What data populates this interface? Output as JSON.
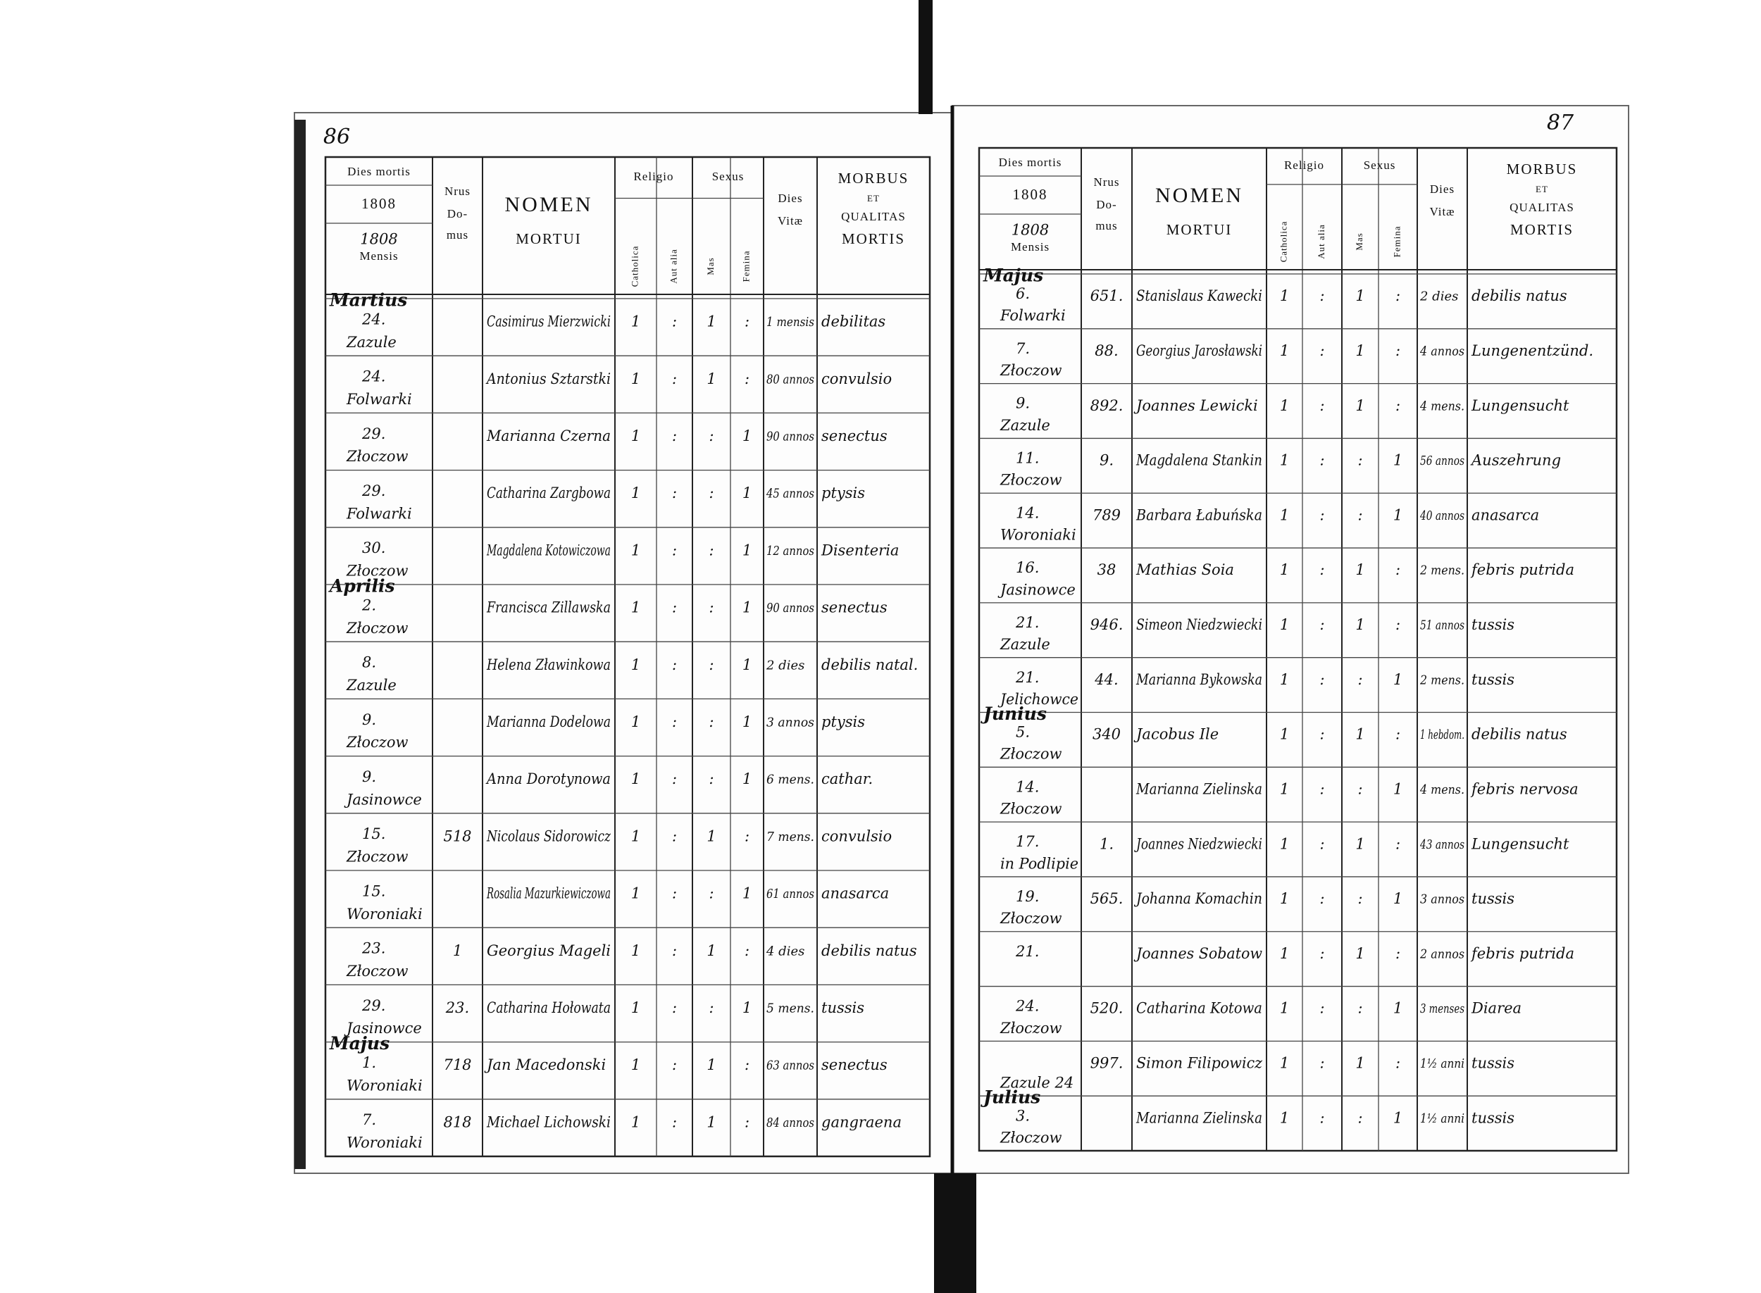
{
  "header": {
    "dies_mortis": "Dies mortis",
    "year": "1808",
    "mensis": "Mensis",
    "nrus": "Nrus",
    "domus": [
      "Do-",
      "mus"
    ],
    "nomen": "NOMEN",
    "mortui": "MORTUI",
    "religio": "Religio",
    "catholica": "Catholica",
    "aut_alia": "Aut alia",
    "sexus": "Sexus",
    "mas": "Mas",
    "femina": "Femina",
    "dies": "Dies",
    "vitae": "Vitæ",
    "morbus": "MORBUS",
    "et": "ET",
    "qualitas": "QUALITAS",
    "mortis": "MORTIS"
  },
  "pages": [
    {
      "page_number": "86",
      "rows": [
        {
          "month": "Martius",
          "day": "24.",
          "place": "Zazule",
          "name": "Casimirus Mierzwicki",
          "catholica": "1",
          "aut_alia": ":",
          "mas": "1",
          "femina": ":",
          "vitae": "1 mensis",
          "morbus": "debilitas"
        },
        {
          "day": "24.",
          "place": "Folwarki",
          "name": "Antonius Sztarstki",
          "catholica": "1",
          "aut_alia": ":",
          "mas": "1",
          "femina": ":",
          "vitae": "80 annos",
          "morbus": "convulsio"
        },
        {
          "day": "29.",
          "place": "Złoczow",
          "name": "Marianna Czerna",
          "catholica": "1",
          "aut_alia": ":",
          "mas": ":",
          "femina": "1",
          "vitae": "90 annos",
          "morbus": "senectus"
        },
        {
          "day": "29.",
          "place": "Folwarki",
          "name": "Catharina Zargbowa",
          "catholica": "1",
          "aut_alia": ":",
          "mas": ":",
          "femina": "1",
          "vitae": "45 annos",
          "morbus": "ptysis"
        },
        {
          "day": "30.",
          "place": "Złoczow",
          "name": "Magdalena Kotowiczowa",
          "catholica": "1",
          "aut_alia": ":",
          "mas": ":",
          "femina": "1",
          "vitae": "12 annos",
          "morbus": "Disenteria"
        },
        {
          "month": "Aprilis",
          "day": "2.",
          "place": "Złoczow",
          "name": "Francisca Zillawska",
          "catholica": "1",
          "aut_alia": ":",
          "mas": ":",
          "femina": "1",
          "vitae": "90 annos",
          "morbus": "senectus"
        },
        {
          "day": "8.",
          "place": "Zazule",
          "name": "Helena Zławinkowa",
          "catholica": "1",
          "aut_alia": ":",
          "mas": ":",
          "femina": "1",
          "vitae": "2 dies",
          "morbus": "debilis natal."
        },
        {
          "day": "9.",
          "place": "Złoczow",
          "name": "Marianna Dodelowa",
          "catholica": "1",
          "aut_alia": ":",
          "mas": ":",
          "femina": "1",
          "vitae": "3 annos",
          "morbus": "ptysis"
        },
        {
          "day": "9.",
          "place": "Jasinowce",
          "name": "Anna Dorotynowa",
          "catholica": "1",
          "aut_alia": ":",
          "mas": ":",
          "femina": "1",
          "vitae": "6 mens.",
          "morbus": "cathar."
        },
        {
          "day": "15.",
          "place": "Złoczow",
          "nr": "518",
          "name": "Nicolaus Sidorowicz",
          "catholica": "1",
          "aut_alia": ":",
          "mas": "1",
          "femina": ":",
          "vitae": "7 mens.",
          "morbus": "convulsio"
        },
        {
          "day": "15.",
          "place": "Woroniaki",
          "name": "Rosalia Mazurkiewiczowa",
          "catholica": "1",
          "aut_alia": ":",
          "mas": ":",
          "femina": "1",
          "vitae": "61 annos",
          "morbus": "anasarca"
        },
        {
          "day": "23.",
          "place": "Złoczow",
          "nr": "1",
          "name": "Georgius Mageli",
          "catholica": "1",
          "aut_alia": ":",
          "mas": "1",
          "femina": ":",
          "vitae": "4 dies",
          "morbus": "debilis natus"
        },
        {
          "day": "29.",
          "place": "Jasinowce",
          "nr": "23.",
          "name": "Catharina Hołowata",
          "catholica": "1",
          "aut_alia": ":",
          "mas": ":",
          "femina": "1",
          "vitae": "5 mens.",
          "morbus": "tussis"
        },
        {
          "month": "Majus",
          "day": "1.",
          "place": "Woroniaki",
          "nr": "718",
          "name": "Jan Macedonski",
          "catholica": "1",
          "aut_alia": ":",
          "mas": "1",
          "femina": ":",
          "vitae": "63 annos",
          "morbus": "senectus"
        },
        {
          "day": "7.",
          "place": "Woroniaki",
          "nr": "818",
          "name": "Michael Lichowski",
          "catholica": "1",
          "aut_alia": ":",
          "mas": "1",
          "femina": ":",
          "vitae": "84 annos",
          "morbus": "gangraena"
        }
      ]
    },
    {
      "page_number": "87",
      "rows": [
        {
          "month": "Majus",
          "day": "6.",
          "place": "Folwarki",
          "nr": "651.",
          "name": "Stanislaus Kawecki",
          "catholica": "1",
          "aut_alia": ":",
          "mas": "1",
          "femina": ":",
          "vitae": "2 dies",
          "morbus": "debilis natus"
        },
        {
          "day": "7.",
          "place": "Złoczow",
          "nr": "88.",
          "name": "Georgius Jarosławski",
          "catholica": "1",
          "aut_alia": ":",
          "mas": "1",
          "femina": ":",
          "vitae": "4 annos",
          "morbus": "Lungenentzünd."
        },
        {
          "day": "9.",
          "place": "Zazule",
          "nr": "892.",
          "name": "Joannes Lewicki",
          "catholica": "1",
          "aut_alia": ":",
          "mas": "1",
          "femina": ":",
          "vitae": "4 mens.",
          "morbus": "Lungensucht"
        },
        {
          "day": "11.",
          "place": "Złoczow",
          "nr": "9.",
          "name": "Magdalena Stankin",
          "catholica": "1",
          "aut_alia": ":",
          "mas": ":",
          "femina": "1",
          "vitae": "56 annos",
          "morbus": "Auszehrung"
        },
        {
          "day": "14.",
          "place": "Woroniaki",
          "nr": "789",
          "name": "Barbara Łabuńska",
          "catholica": "1",
          "aut_alia": ":",
          "mas": ":",
          "femina": "1",
          "vitae": "40 annos",
          "morbus": "anasarca"
        },
        {
          "day": "16.",
          "place": "Jasinowce",
          "nr": "38",
          "name": "Mathias Soia",
          "catholica": "1",
          "aut_alia": ":",
          "mas": "1",
          "femina": ":",
          "vitae": "2 mens.",
          "morbus": "febris putrida"
        },
        {
          "day": "21.",
          "place": "Zazule",
          "nr": "946.",
          "name": "Simeon Niedzwiecki",
          "catholica": "1",
          "aut_alia": ":",
          "mas": "1",
          "femina": ":",
          "vitae": "51 annos",
          "morbus": "tussis"
        },
        {
          "day": "21.",
          "place": "Jelichowce",
          "nr": "44.",
          "name": "Marianna Bykowska",
          "catholica": "1",
          "aut_alia": ":",
          "mas": ":",
          "femina": "1",
          "vitae": "2 mens.",
          "morbus": "tussis"
        },
        {
          "month": "Junius",
          "day": "5.",
          "place": "Złoczow",
          "nr": "340",
          "name": "Jacobus Ile",
          "catholica": "1",
          "aut_alia": ":",
          "mas": "1",
          "femina": ":",
          "vitae": "1 hebdom.",
          "morbus": "debilis natus"
        },
        {
          "day": "14.",
          "place": "Złoczow",
          "name": "Marianna Zielinska",
          "catholica": "1",
          "aut_alia": ":",
          "mas": ":",
          "femina": "1",
          "vitae": "4 mens.",
          "morbus": "febris nervosa"
        },
        {
          "day": "17.",
          "place": "in Podlipie",
          "nr": "1.",
          "name": "Joannes Niedzwiecki",
          "catholica": "1",
          "aut_alia": ":",
          "mas": "1",
          "femina": ":",
          "vitae": "43 annos",
          "morbus": "Lungensucht"
        },
        {
          "day": "19.",
          "place": "Złoczow",
          "nr": "565.",
          "name": "Johanna Komachin",
          "catholica": "1",
          "aut_alia": ":",
          "mas": ":",
          "femina": "1",
          "vitae": "3 annos",
          "morbus": "tussis"
        },
        {
          "day": "21.",
          "name": "Joannes Sobatow",
          "catholica": "1",
          "aut_alia": ":",
          "mas": "1",
          "femina": ":",
          "vitae": "2 annos",
          "morbus": "febris putrida"
        },
        {
          "day": "24.",
          "place": "Złoczow",
          "nr": "520.",
          "name": "Catharina Kotowa",
          "catholica": "1",
          "aut_alia": ":",
          "mas": ":",
          "femina": "1",
          "vitae": "3 menses",
          "morbus": "Diarea"
        },
        {
          "place": "Zazule 24",
          "nr": "997.",
          "name": "Simon Filipowicz",
          "catholica": "1",
          "aut_alia": ":",
          "mas": "1",
          "femina": ":",
          "vitae": "1½ anni",
          "morbus": "tussis"
        },
        {
          "month": "Julius",
          "day": "3.",
          "place": "Złoczow",
          "name": "Marianna Zielinska",
          "catholica": "1",
          "aut_alia": ":",
          "mas": ":",
          "femina": "1",
          "vitae": "1½ anni",
          "morbus": "tussis"
        }
      ]
    }
  ]
}
